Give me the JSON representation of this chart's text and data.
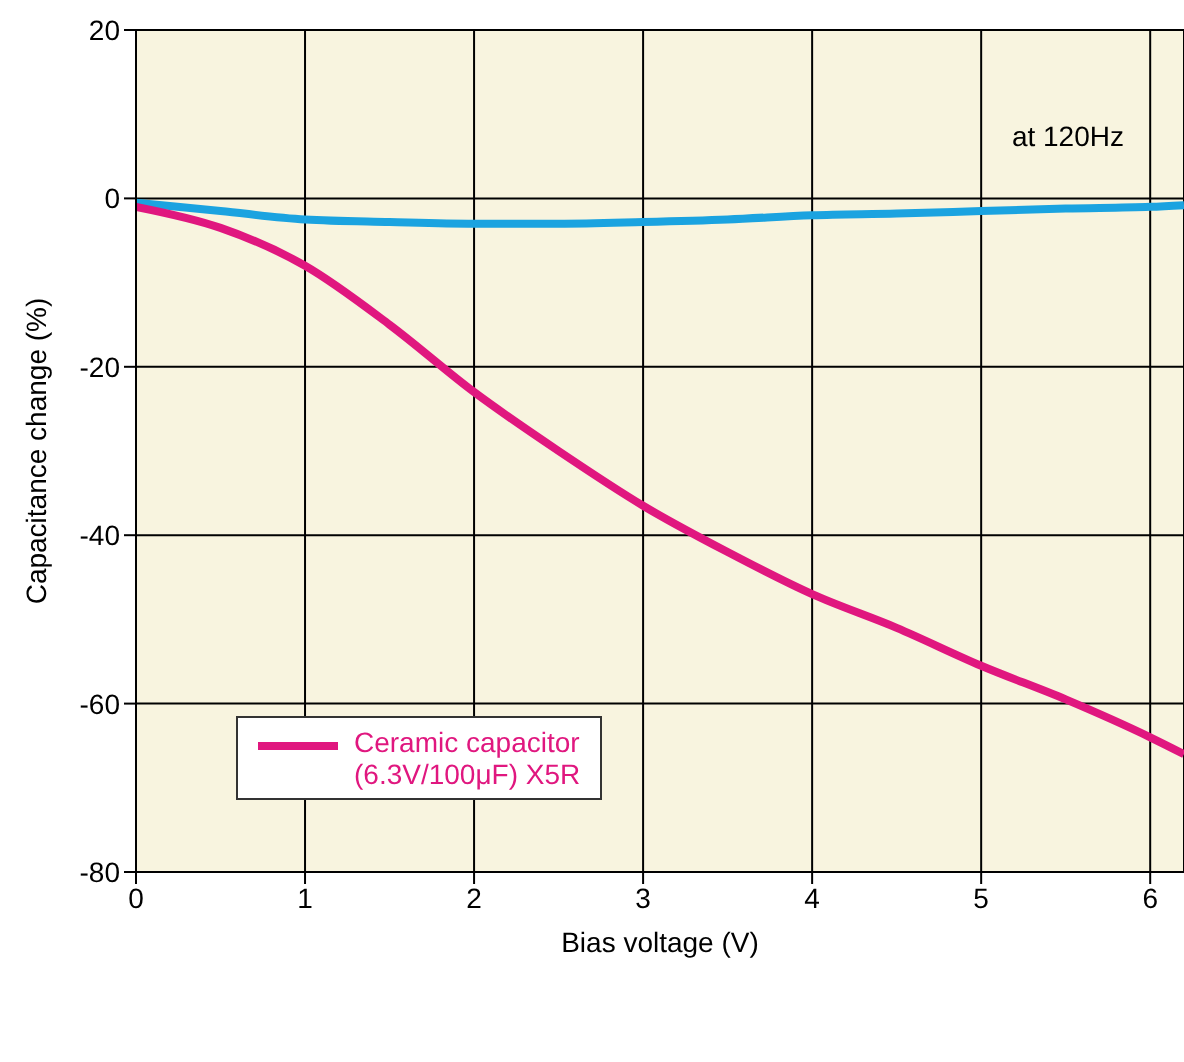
{
  "chart_data": {
    "type": "line",
    "xlabel": "Bias voltage (V)",
    "ylabel": "Capacitance change (%)",
    "annotations": [
      "at 120Hz"
    ],
    "x": [
      0,
      0.5,
      1,
      1.5,
      2,
      2.5,
      3,
      3.5,
      4,
      4.5,
      5,
      5.5,
      6,
      6.2
    ],
    "series": [
      {
        "color": "#1ba3e0",
        "values": [
          -0.5,
          -1.5,
          -2.5,
          -2.8,
          -3,
          -3,
          -2.8,
          -2.5,
          -2,
          -1.8,
          -1.5,
          -1.2,
          -1,
          -0.8
        ]
      },
      {
        "name": "Ceramic capacitor\n(6.3V/100μF) X5R",
        "color": "#e0177f",
        "values": [
          -1,
          -3.5,
          -8,
          -15,
          -23,
          -30,
          -36.5,
          -42,
          -47,
          -51,
          -55.5,
          -59.5,
          -64,
          -66
        ]
      }
    ],
    "xlim": [
      0,
      6.2
    ],
    "xticks": [
      0,
      1,
      2,
      3,
      4,
      5,
      6
    ],
    "ylim": [
      -80,
      20
    ],
    "yticks": [
      -80,
      -60,
      -40,
      -20,
      0,
      20
    ],
    "grid": true,
    "legend": "bottom left",
    "line_style": "solid",
    "marker": "none"
  }
}
